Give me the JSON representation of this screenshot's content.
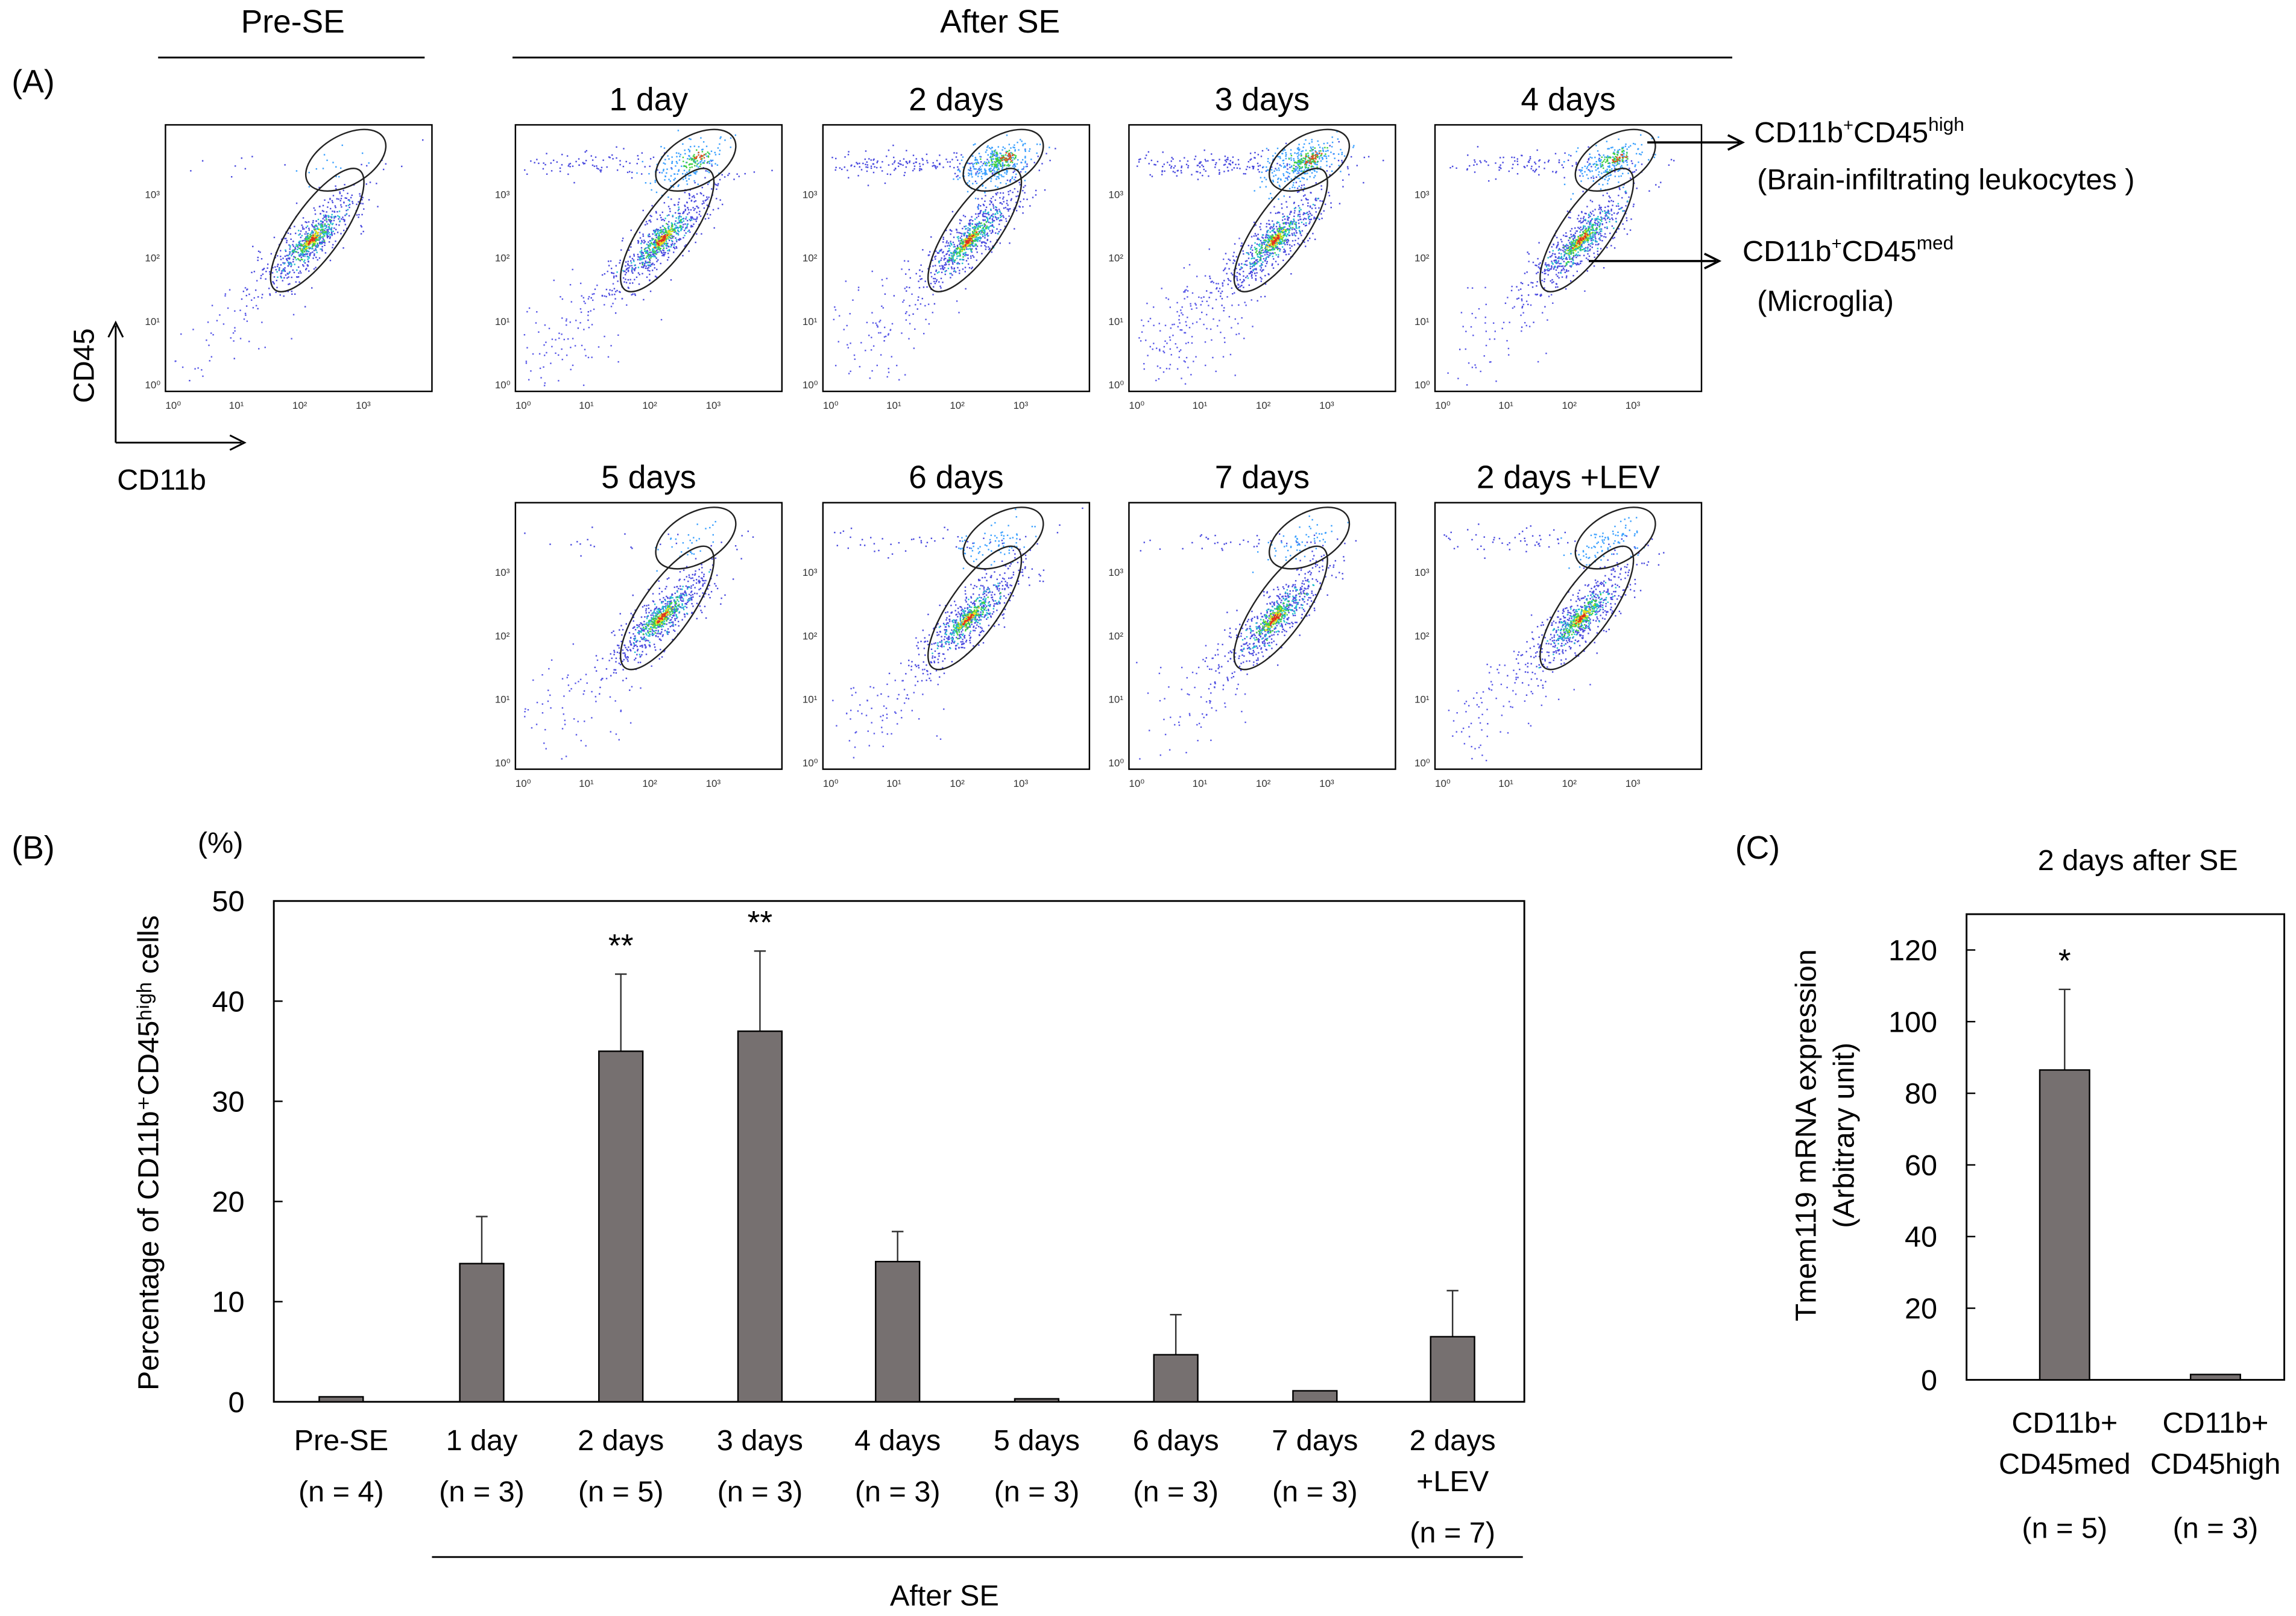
{
  "panel_a": {
    "label": "(A)",
    "pre_title": "Pre-SE",
    "after_title": "After SE",
    "axis_y": "CD45",
    "axis_x": "CD11b",
    "flow_ticks": [
      "10⁰",
      "10¹",
      "10²",
      "10³"
    ],
    "plots": [
      {
        "title": ""
      },
      {
        "title": "1 day"
      },
      {
        "title": "2 days"
      },
      {
        "title": "3 days"
      },
      {
        "title": "4 days"
      },
      {
        "title": "5 days"
      },
      {
        "title": "6 days"
      },
      {
        "title": "7 days"
      },
      {
        "title": "2 days +LEV"
      }
    ],
    "annot_high": {
      "base": "CD11b",
      "sup1": "+",
      "mid": "CD45",
      "sup2": "high",
      "desc": "(Brain-infiltrating  leukocytes )"
    },
    "annot_med": {
      "base": "CD11b",
      "sup1": "+",
      "mid": "CD45",
      "sup2": "med",
      "desc": "(Microglia)"
    }
  },
  "chart_data": [
    {
      "type": "bar",
      "panel": "(B)",
      "unit": "(%)",
      "ylabel": "Percentage of CD11b⁺CD45ʰⁱᵍʰ cells",
      "ylim": [
        0,
        50
      ],
      "yticks": [
        0,
        10,
        20,
        30,
        40,
        50
      ],
      "categories": [
        "Pre-SE",
        "1 day",
        "2 days",
        "3 days",
        "4 days",
        "5 days",
        "6 days",
        "7 days",
        "2 days +LEV"
      ],
      "category_lines": [
        [
          "Pre-SE"
        ],
        [
          "1 day"
        ],
        [
          "2 days"
        ],
        [
          "3 days"
        ],
        [
          "4 days"
        ],
        [
          "5 days"
        ],
        [
          "6 days"
        ],
        [
          "7 days"
        ],
        [
          "2 days",
          "+LEV"
        ]
      ],
      "n": [
        "(n = 4)",
        "(n = 3)",
        "(n = 5)",
        "(n = 3)",
        "(n = 3)",
        "(n = 3)",
        "(n = 3)",
        "(n = 3)",
        "(n = 7)"
      ],
      "values": [
        0.5,
        13.8,
        35.0,
        37.0,
        14.0,
        0.3,
        4.7,
        1.1,
        6.5
      ],
      "error_upper": [
        0.5,
        18.5,
        42.7,
        45.0,
        17.0,
        0.3,
        8.7,
        1.1,
        11.1
      ],
      "significance": [
        "",
        "",
        "**",
        "**",
        "",
        "",
        "",
        "",
        ""
      ],
      "group_label": "After SE",
      "bar_color": "#767070"
    },
    {
      "type": "bar",
      "panel": "(C)",
      "title": "2 days after SE",
      "ylabel": "Tmem119 mRNA expression",
      "ylabel2": "(Arbitrary unit)",
      "ylim": [
        0,
        130
      ],
      "yticks": [
        0,
        20,
        40,
        60,
        80,
        100,
        120
      ],
      "categories": [
        "CD11b⁺CD45ᵐᵉᵈ",
        "CD11b⁺CD45ʰⁱᵍʰ"
      ],
      "category_lines": [
        [
          "CD11b+",
          "CD45med"
        ],
        [
          "CD11b+",
          "CD45high"
        ]
      ],
      "n": [
        "(n = 5)",
        "(n = 3)"
      ],
      "values": [
        86.5,
        1.5
      ],
      "error_upper": [
        109,
        1.5
      ],
      "significance": [
        "*",
        ""
      ],
      "bar_color": "#767070"
    }
  ]
}
